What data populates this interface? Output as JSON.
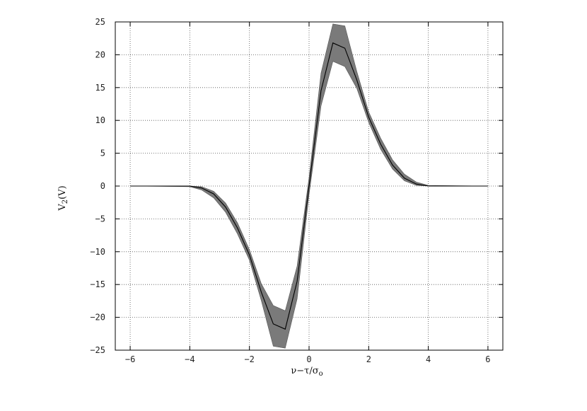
{
  "chart_data": {
    "type": "area",
    "xlabel": "ν−τ/σ",
    "xlabel_sub": "o",
    "ylabel": "V",
    "ylabel_sub": "2",
    "ylabel_suffix": "(V)",
    "xlim": [
      -6.5,
      6.5
    ],
    "ylim": [
      -25,
      25
    ],
    "xticks": [
      -6,
      -4,
      -2,
      0,
      2,
      4,
      6
    ],
    "xtick_labels": [
      "−6",
      "−4",
      "−2",
      "0",
      "2",
      "4",
      "6"
    ],
    "yticks": [
      -25,
      -20,
      -15,
      -10,
      -5,
      0,
      5,
      10,
      15,
      20,
      25
    ],
    "ytick_labels": [
      "−25",
      "−20",
      "−15",
      "−10",
      "−5",
      "0",
      "5",
      "10",
      "15",
      "20",
      "25"
    ],
    "grid": true,
    "grid_style": "dotted",
    "series": [
      {
        "role": "mean",
        "color": "#000000",
        "x": [
          -6.0,
          -4.0,
          -3.6,
          -3.2,
          -2.8,
          -2.4,
          -2.0,
          -1.6,
          -1.2,
          -0.8,
          -0.4,
          0.0,
          0.4,
          0.8,
          1.2,
          1.6,
          2.0,
          2.4,
          2.8,
          3.2,
          3.6,
          4.0,
          6.0
        ],
        "y": [
          0.0,
          0.0,
          -0.3,
          -1.2,
          -3.2,
          -6.4,
          -10.5,
          -16.2,
          -21.0,
          -21.8,
          -14.5,
          0.0,
          14.5,
          21.8,
          21.0,
          16.2,
          10.5,
          6.4,
          3.2,
          1.2,
          0.3,
          0.0,
          0.0
        ]
      },
      {
        "role": "band",
        "color": "#7a7a7a",
        "x": [
          -6.0,
          -4.0,
          -3.6,
          -3.2,
          -2.8,
          -2.4,
          -2.0,
          -1.6,
          -1.2,
          -0.8,
          -0.4,
          0.0,
          0.4,
          0.8,
          1.2,
          1.6,
          2.0,
          2.4,
          2.8,
          3.2,
          3.6,
          4.0,
          6.0
        ],
        "lower": [
          0.0,
          -0.1,
          -0.6,
          -1.8,
          -4.0,
          -7.3,
          -11.3,
          -17.5,
          -24.4,
          -24.7,
          -17.2,
          -1.3,
          12.2,
          19.0,
          18.2,
          14.9,
          9.7,
          5.6,
          2.6,
          0.8,
          0.1,
          0.0,
          0.0
        ],
        "upper": [
          0.0,
          0.0,
          -0.1,
          -0.8,
          -2.6,
          -5.6,
          -9.7,
          -14.9,
          -18.2,
          -19.0,
          -12.2,
          1.3,
          17.2,
          24.7,
          24.4,
          17.5,
          11.3,
          7.3,
          4.0,
          1.8,
          0.6,
          0.1,
          0.0
        ]
      }
    ]
  }
}
